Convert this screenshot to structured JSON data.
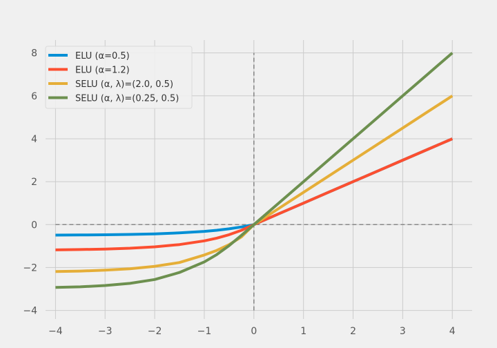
{
  "chart_data": {
    "type": "line",
    "title": "",
    "xlabel": "",
    "ylabel": "",
    "xlim": [
      -4.2,
      4.4
    ],
    "ylim": [
      -4.4,
      8.6
    ],
    "xticks": [
      -4,
      -3,
      -2,
      -1,
      0,
      1,
      2,
      3,
      4
    ],
    "yticks": [
      -4,
      -2,
      0,
      2,
      4,
      6,
      8
    ],
    "grid": true,
    "legend_position": "top-left",
    "x": [
      -4.0,
      -3.5,
      -3.0,
      -2.5,
      -2.0,
      -1.5,
      -1.0,
      -0.75,
      -0.5,
      -0.25,
      0.0,
      0.5,
      1.0,
      1.5,
      2.0,
      2.5,
      3.0,
      3.5,
      4.0
    ],
    "series": [
      {
        "name": "ELU (α=0.5)",
        "color": "#008fd5",
        "values": [
          -0.491,
          -0.485,
          -0.475,
          -0.459,
          -0.432,
          -0.388,
          -0.316,
          -0.264,
          -0.197,
          -0.111,
          0.0,
          0.5,
          1.0,
          1.5,
          2.0,
          2.5,
          3.0,
          3.5,
          4.0
        ]
      },
      {
        "name": "ELU (α=1.2)",
        "color": "#fc4f30",
        "values": [
          -1.178,
          -1.164,
          -1.14,
          -1.102,
          -1.038,
          -0.932,
          -0.759,
          -0.633,
          -0.472,
          -0.265,
          0.0,
          0.5,
          1.0,
          1.5,
          2.0,
          2.5,
          3.0,
          3.5,
          4.0
        ]
      },
      {
        "name": "SELU (α, λ)=(2.0, 0.5)",
        "color": "#e5ae38",
        "values": [
          -2.19,
          -2.166,
          -2.126,
          -2.06,
          -1.946,
          -1.768,
          -1.416,
          -1.205,
          -0.934,
          -0.575,
          0.0,
          0.75,
          1.5,
          2.25,
          3.0,
          3.75,
          4.5,
          5.25,
          6.0
        ]
      },
      {
        "name": "SELU (α, λ)=(0.25, 0.5)",
        "color": "#6d904f",
        "values": [
          -2.93,
          -2.9,
          -2.84,
          -2.74,
          -2.56,
          -2.23,
          -1.74,
          -1.4,
          -0.98,
          -0.5,
          0.0,
          1.0,
          2.0,
          3.0,
          4.0,
          5.0,
          6.0,
          7.0,
          8.0
        ]
      }
    ]
  }
}
